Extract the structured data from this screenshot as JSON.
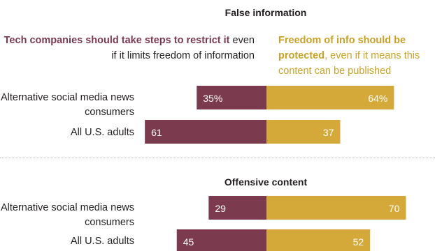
{
  "chart_data": {
    "type": "bar",
    "legend": {
      "left_bold": "Tech companies should take steps to restrict it",
      "left_rest": "even if it limits freedom of information",
      "right_bold": "Freedom of info should be protected",
      "right_rest": ", even if it means this content can be published"
    },
    "colors": {
      "restrict": "#7b3a4e",
      "freedom": "#d4a93a"
    },
    "panels": [
      {
        "title": "False information",
        "rows": [
          {
            "label": "Alternative social media news consumers",
            "restrict": 35,
            "freedom": 64,
            "restrict_label": "35%",
            "freedom_label": "64%"
          },
          {
            "label": "All U.S. adults",
            "restrict": 61,
            "freedom": 37,
            "restrict_label": "61",
            "freedom_label": "37"
          }
        ]
      },
      {
        "title": "Offensive content",
        "rows": [
          {
            "label": "Alternative social media news consumers",
            "restrict": 29,
            "freedom": 70,
            "restrict_label": "29",
            "freedom_label": "70"
          },
          {
            "label": "All U.S. adults",
            "restrict": 45,
            "freedom": 52,
            "restrict_label": "45",
            "freedom_label": "52"
          }
        ]
      }
    ]
  }
}
